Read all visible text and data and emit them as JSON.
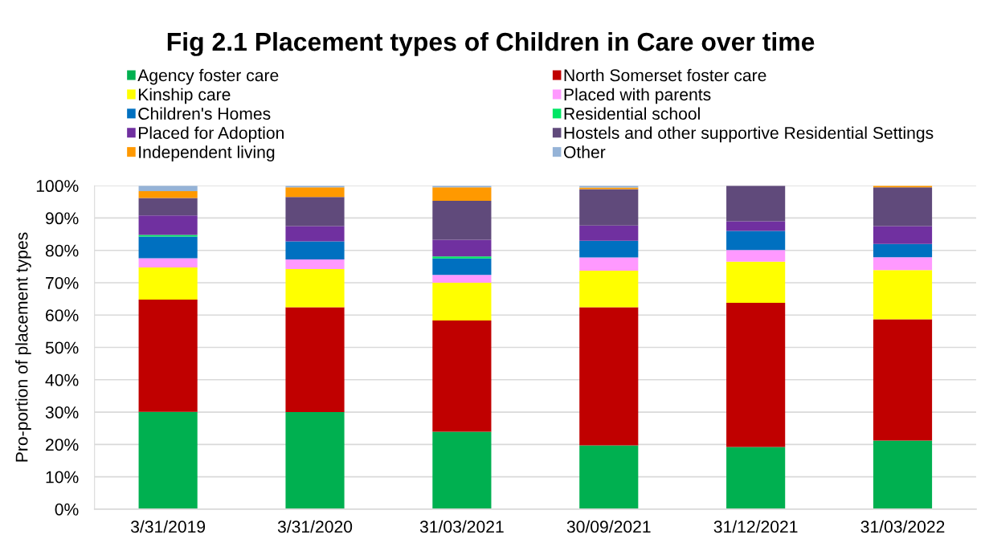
{
  "chart_data": {
    "type": "bar",
    "stacked": true,
    "title": "Fig 2.1 Placement types of Children in Care over time",
    "ylabel": "Pro-portion of placement types",
    "categories": [
      "3/31/2019",
      "3/31/2020",
      "31/03/2021",
      "30/09/2021",
      "31/12/2021",
      "31/03/2022"
    ],
    "series": [
      {
        "name": "Agency foster care",
        "color": "#00b050",
        "values": [
          30.1,
          30.0,
          23.9,
          19.7,
          19.2,
          21.2
        ]
      },
      {
        "name": "North Somerset foster care",
        "color": "#c00000",
        "values": [
          34.7,
          32.4,
          34.4,
          42.7,
          44.6,
          37.5
        ]
      },
      {
        "name": "Kinship care",
        "color": "#ffff00",
        "values": [
          9.9,
          11.8,
          11.7,
          11.3,
          12.7,
          15.2
        ]
      },
      {
        "name": "Placed with parents",
        "color": "#ff99ff",
        "values": [
          2.9,
          3.0,
          2.4,
          4.1,
          3.6,
          4.0
        ]
      },
      {
        "name": "Children's Homes",
        "color": "#0070c0",
        "values": [
          6.7,
          5.6,
          5.1,
          5.2,
          5.9,
          4.1
        ]
      },
      {
        "name": "Residential school",
        "color": "#00e664",
        "values": [
          0.5,
          0,
          0.6,
          0,
          0,
          0
        ]
      },
      {
        "name": "Placed for Adoption",
        "color": "#7030a0",
        "values": [
          6.0,
          4.7,
          5.2,
          4.7,
          3.0,
          5.5
        ]
      },
      {
        "name": "Hostels and other supportive Residential Settings",
        "color": "#604a7b",
        "values": [
          5.4,
          9.0,
          12.0,
          11.2,
          11.0,
          12.0
        ]
      },
      {
        "name": "Independent living",
        "color": "#ff9900",
        "values": [
          2.1,
          3.0,
          4.2,
          0.5,
          0,
          0.5
        ]
      },
      {
        "name": "Other",
        "color": "#95b3d7",
        "values": [
          1.7,
          0.5,
          0.5,
          0.6,
          0,
          0
        ]
      }
    ],
    "ylim": [
      0,
      100
    ],
    "yticks": [
      {
        "value": 0,
        "label": "0%"
      },
      {
        "value": 10,
        "label": "10%"
      },
      {
        "value": 20,
        "label": "20%"
      },
      {
        "value": 30,
        "label": "30%"
      },
      {
        "value": 40,
        "label": "40%"
      },
      {
        "value": 50,
        "label": "50%"
      },
      {
        "value": 60,
        "label": "60%"
      },
      {
        "value": 70,
        "label": "70%"
      },
      {
        "value": 80,
        "label": "80%"
      },
      {
        "value": 90,
        "label": "90%"
      },
      {
        "value": 100,
        "label": "100%"
      }
    ],
    "grid": "y",
    "legend": "top"
  }
}
